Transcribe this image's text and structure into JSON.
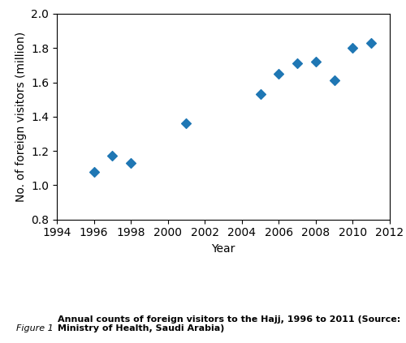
{
  "chart_data": {
    "type": "scatter",
    "x": [
      1996,
      1997,
      1998,
      2001,
      2005,
      2006,
      2007,
      2008,
      2009,
      2010,
      2011
    ],
    "values": [
      1.08,
      1.17,
      1.13,
      1.36,
      1.53,
      1.65,
      1.71,
      1.72,
      1.61,
      1.8,
      1.83
    ],
    "marker": "diamond",
    "xlabel": "Year",
    "ylabel": "No. of foreign visitors (million)",
    "xlim": [
      1994,
      2012
    ],
    "xticks": [
      1994,
      1996,
      1998,
      2000,
      2002,
      2004,
      2006,
      2008,
      2010,
      2012
    ],
    "ylim": [
      0.8,
      2.0
    ],
    "yticks": [
      0.8,
      {
        "value": 1.0,
        "label": "1.0"
      },
      1.2,
      1.4,
      1.6,
      1.8,
      {
        "value": 2.0,
        "label": "2.0"
      }
    ],
    "grid": false,
    "annotations": [
      "Figure 1",
      "Annual counts of foreign visitors to the Hajj, 1996 to 2011 (Source:\nMinistry of Health, Saudi Arabia)"
    ]
  }
}
